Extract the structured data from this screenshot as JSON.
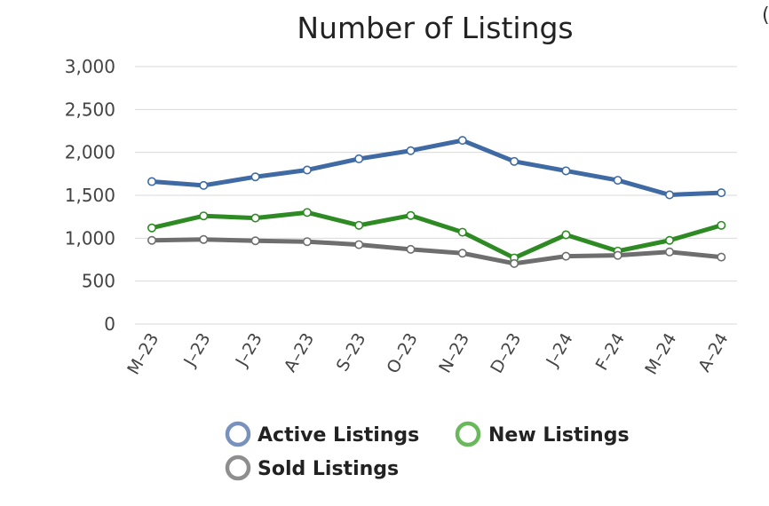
{
  "chart_data": {
    "type": "line",
    "title": "Number of Listings",
    "xlabel": "",
    "ylabel": "",
    "categories": [
      "M–23",
      "J–23",
      "J–23",
      "A–23",
      "S–23",
      "O–23",
      "N–23",
      "D–23",
      "J–24",
      "F–24",
      "M–24",
      "A–24"
    ],
    "ylim": [
      0,
      3000
    ],
    "yticks": [
      0,
      500,
      1000,
      1500,
      2000,
      2500,
      3000
    ],
    "ytick_labels": [
      "0",
      "500",
      "1,000",
      "1,500",
      "2,000",
      "2,500",
      "3,000"
    ],
    "grid": true,
    "legend_position": "bottom",
    "series": [
      {
        "name": "Active Listings",
        "color": "#3f6aa3",
        "values": [
          1660,
          1615,
          1715,
          1795,
          1925,
          2020,
          2140,
          1895,
          1785,
          1675,
          1505,
          1530
        ]
      },
      {
        "name": "New Listings",
        "color": "#2e8b24",
        "values": [
          1120,
          1260,
          1235,
          1300,
          1150,
          1265,
          1070,
          770,
          1040,
          850,
          975,
          1150
        ]
      },
      {
        "name": "Sold Listings",
        "color": "#6e6e6e",
        "values": [
          975,
          985,
          970,
          960,
          925,
          870,
          825,
          705,
          790,
          800,
          840,
          780
        ]
      }
    ],
    "legend_ring_colors": [
      "#7892bd",
      "#6ab85c",
      "#8e8e8e"
    ]
  },
  "cutoff_text": "("
}
